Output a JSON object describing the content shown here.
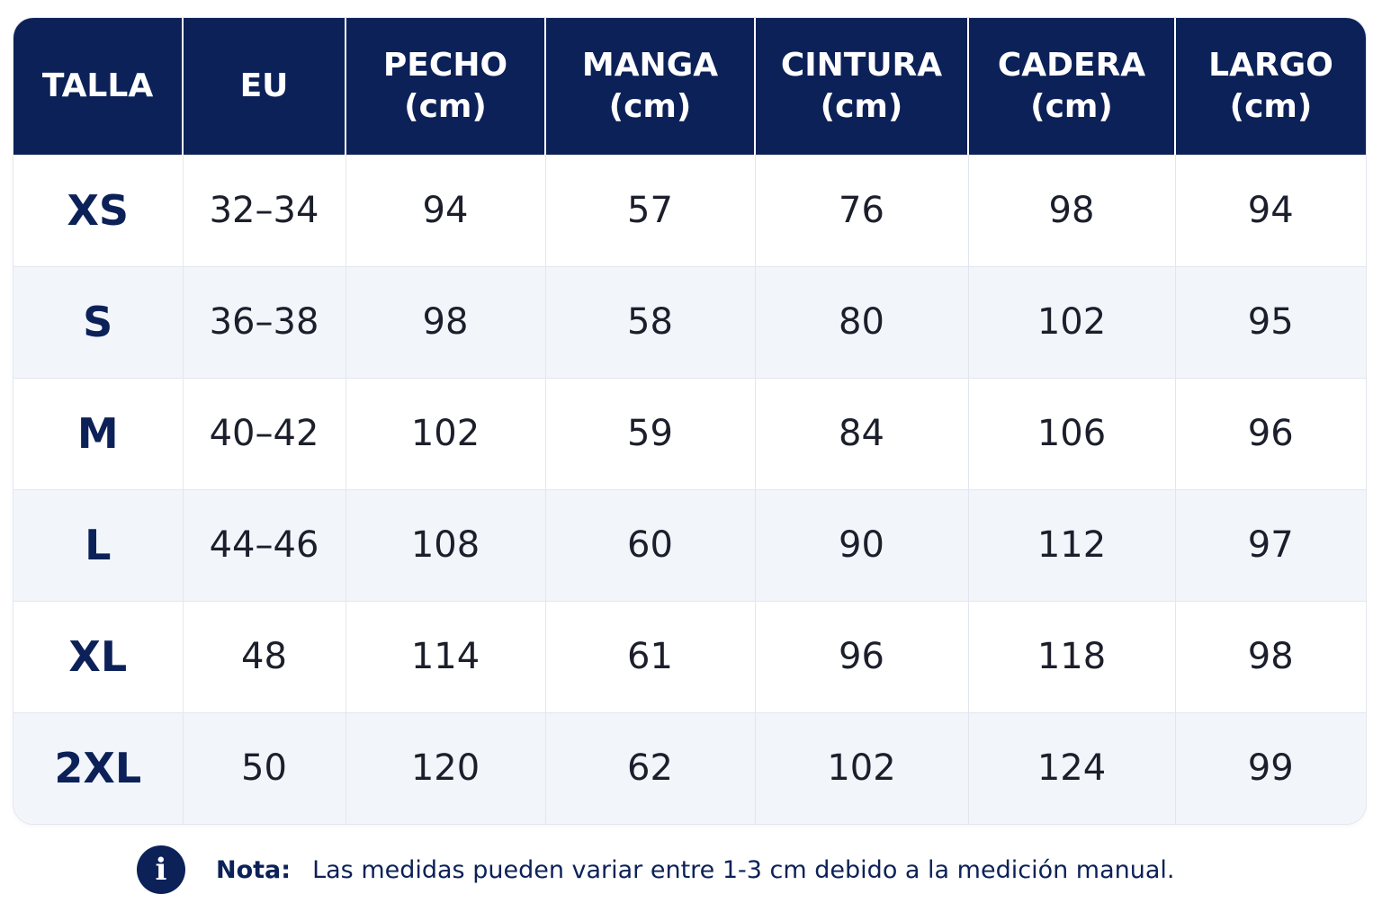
{
  "table": {
    "headers": [
      {
        "line1": "TALLA",
        "line2": ""
      },
      {
        "line1": "EU",
        "line2": ""
      },
      {
        "line1": "PECHO",
        "line2": "(cm)"
      },
      {
        "line1": "MANGA",
        "line2": "(cm)"
      },
      {
        "line1": "CINTURA",
        "line2": "(cm)"
      },
      {
        "line1": "CADERA",
        "line2": "(cm)"
      },
      {
        "line1": "LARGO",
        "line2": "(cm)"
      }
    ],
    "rows": [
      [
        "XS",
        "32–34",
        "94",
        "57",
        "76",
        "98",
        "94"
      ],
      [
        "S",
        "36–38",
        "98",
        "58",
        "80",
        "102",
        "95"
      ],
      [
        "M",
        "40–42",
        "102",
        "59",
        "84",
        "106",
        "96"
      ],
      [
        "L",
        "44–46",
        "108",
        "60",
        "90",
        "112",
        "97"
      ],
      [
        "XL",
        "48",
        "114",
        "61",
        "96",
        "118",
        "98"
      ],
      [
        "2XL",
        "50",
        "120",
        "62",
        "102",
        "124",
        "99"
      ]
    ]
  },
  "note": {
    "icon": "info-icon",
    "icon_glyph": "i",
    "label": "Nota:",
    "text": "Las medidas pueden variar entre 1-3 cm debido a la medición manual."
  },
  "colors": {
    "header_bg": "#0c2158",
    "stripe_bg": "#f2f6fb",
    "accent": "#0c2158"
  }
}
